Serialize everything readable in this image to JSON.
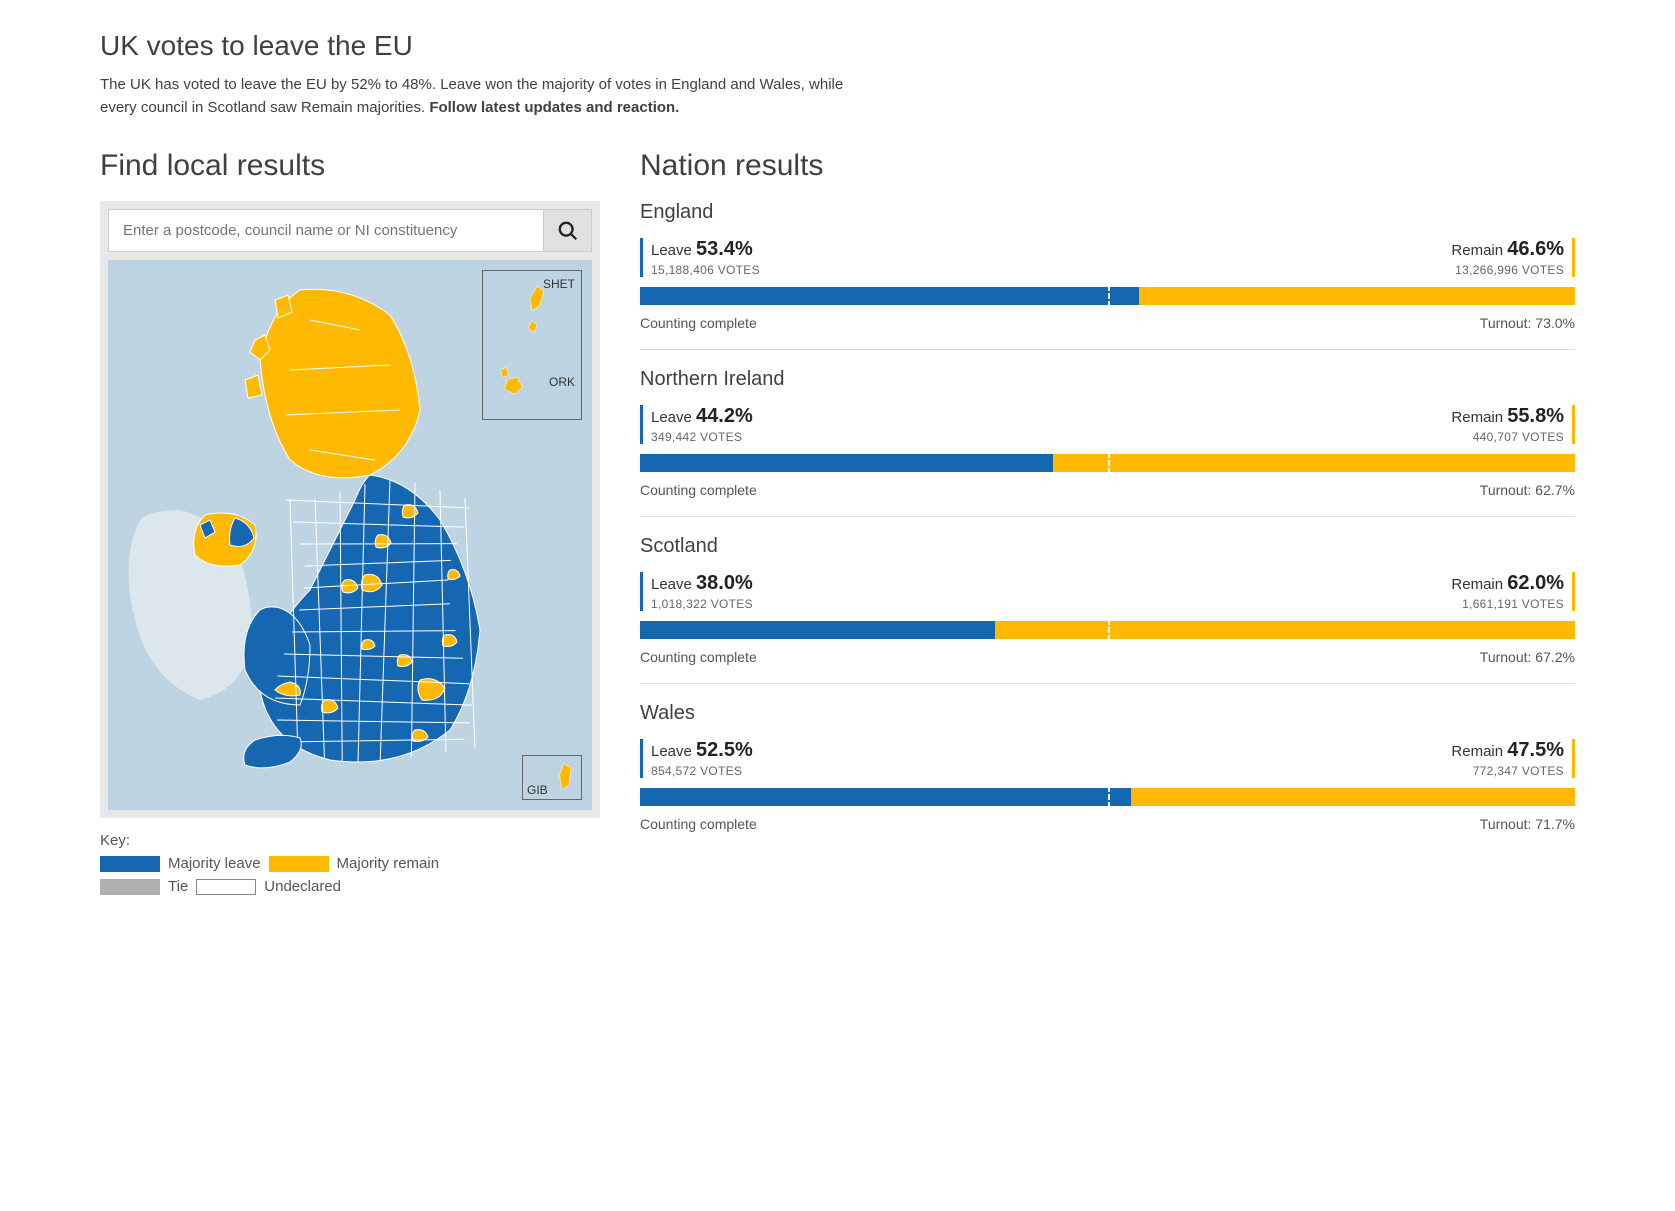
{
  "colors": {
    "leave": "#1667b1",
    "remain": "#ffb900",
    "tie": "#b0b0b0",
    "undeclared": "#ffffff",
    "map_water": "#bfd4e3",
    "map_ireland": "#dce6ed"
  },
  "header": {
    "title": "UK votes to leave the EU",
    "body": "The UK has voted to leave the EU by 52% to 48%. Leave won the majority of votes in England and Wales, while every council in Scotland saw Remain majorities.",
    "link": "Follow latest updates and reaction."
  },
  "local": {
    "title": "Find local results",
    "placeholder": "Enter a postcode, council name or NI constituency",
    "insets": {
      "shet": "SHET",
      "ork": "ORK",
      "gib": "GIB"
    }
  },
  "key": {
    "label": "Key:",
    "leave": "Majority leave",
    "remain": "Majority remain",
    "tie": "Tie",
    "undeclared": "Undeclared"
  },
  "nation_section_title": "Nation results",
  "labels": {
    "leave": "Leave",
    "remain": "Remain",
    "votes_suffix": " VOTES",
    "counting": "Counting complete",
    "turnout_prefix": "Turnout: "
  },
  "nations": [
    {
      "name": "England",
      "leave_pct": "53.4%",
      "leave_votes": "15,188,406",
      "leave_bar": 53.4,
      "remain_pct": "46.6%",
      "remain_votes": "13,266,996",
      "turnout": "73.0%"
    },
    {
      "name": "Northern Ireland",
      "leave_pct": "44.2%",
      "leave_votes": "349,442",
      "leave_bar": 44.2,
      "remain_pct": "55.8%",
      "remain_votes": "440,707",
      "turnout": "62.7%"
    },
    {
      "name": "Scotland",
      "leave_pct": "38.0%",
      "leave_votes": "1,018,322",
      "leave_bar": 38.0,
      "remain_pct": "62.0%",
      "remain_votes": "1,661,191",
      "turnout": "67.2%"
    },
    {
      "name": "Wales",
      "leave_pct": "52.5%",
      "leave_votes": "854,572",
      "leave_bar": 52.5,
      "remain_pct": "47.5%",
      "remain_votes": "772,347",
      "turnout": "71.7%"
    }
  ]
}
